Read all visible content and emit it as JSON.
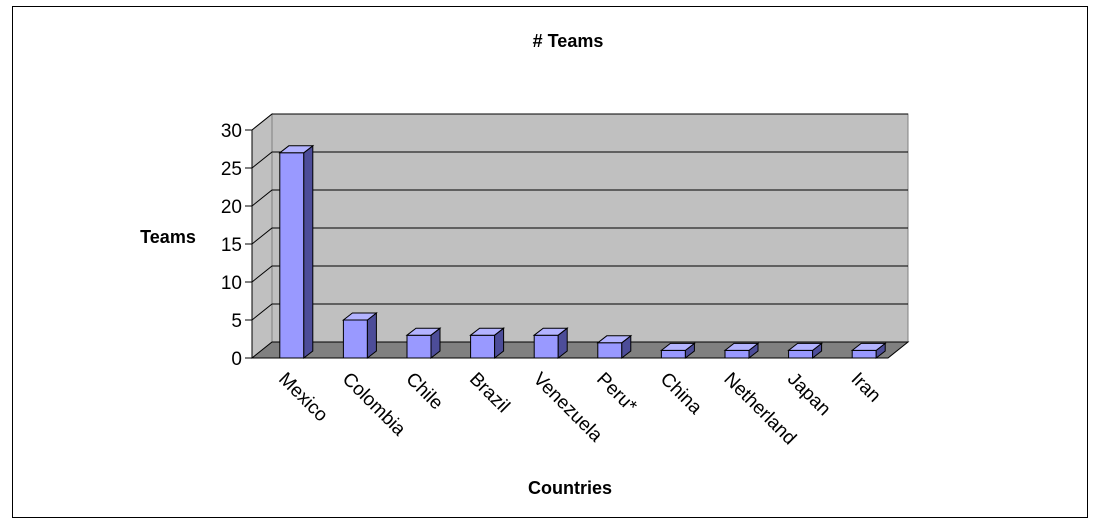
{
  "chart_data": {
    "type": "bar",
    "title": "# Teams",
    "xlabel": "Countries",
    "ylabel": "Teams",
    "categories": [
      "Mexico",
      "Colombia",
      "Chile",
      "Brazil",
      "Venezuela",
      "Peru*",
      "China",
      "Netherland",
      "Japan",
      "Iran"
    ],
    "values": [
      27,
      5,
      3,
      3,
      3,
      2,
      1,
      1,
      1,
      1
    ],
    "ylim": [
      0,
      30
    ],
    "yticks": [
      "0",
      "5",
      "10",
      "15",
      "20",
      "25",
      "30"
    ],
    "grid": true,
    "legend": "none",
    "colors": {
      "bar_front": "#9999ff",
      "bar_side": "#4d4d99",
      "bar_top": "#b3b3ff",
      "wall": "#c0c0c0",
      "floor": "#808080",
      "grid": "#000000"
    }
  }
}
